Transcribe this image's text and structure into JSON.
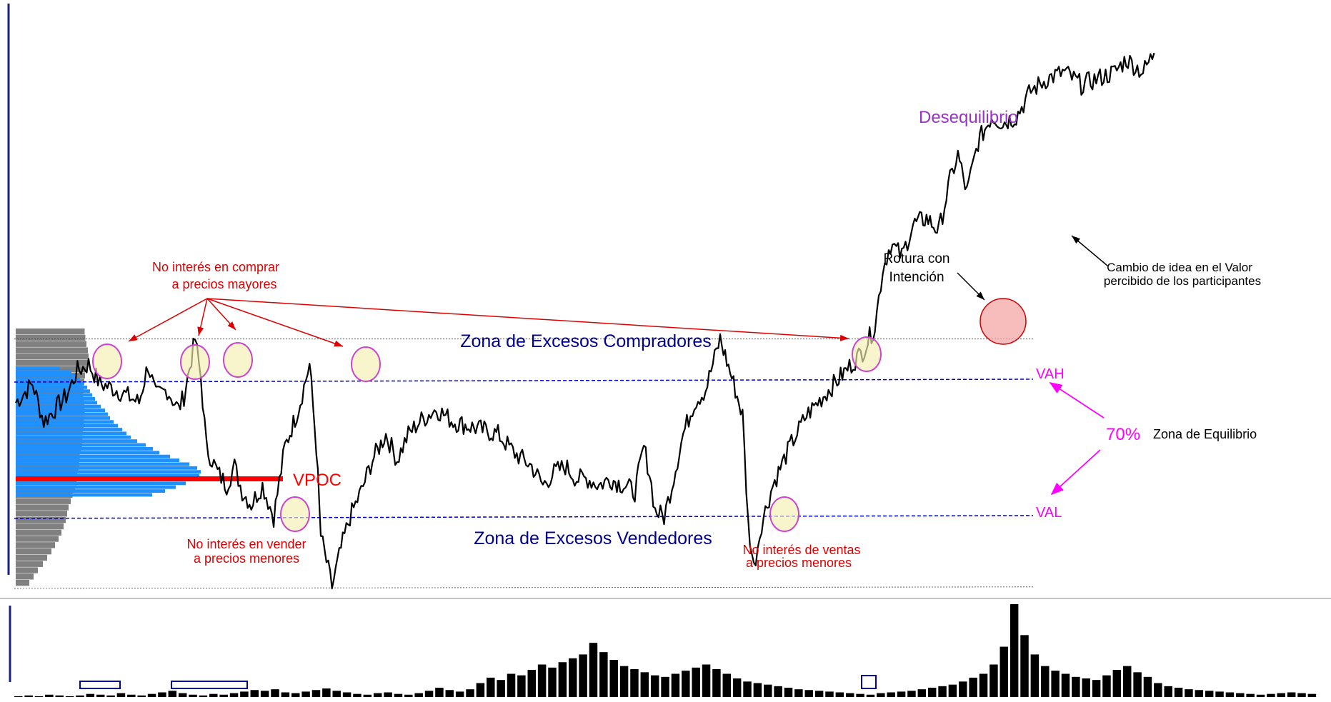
{
  "chart_data": {
    "type": "line",
    "title": "",
    "xlabel": "",
    "ylabel": "",
    "grid": false,
    "levels": {
      "excess_high": 98.5,
      "vah": 95,
      "vpoc": 87.5,
      "val": 84.5,
      "excess_low": 79
    },
    "level_labels": {
      "vah": "VAH",
      "val": "VAL",
      "vpoc": "VPOC"
    },
    "zones": {
      "buyers_excess": "Zona de Excesos Compradores",
      "sellers_excess": "Zona de Excesos Vendedores",
      "equilibrium_pct": "70%",
      "equilibrium": "Zona de Equilibrio",
      "imbalance": "Desequilibrio"
    },
    "annotations": {
      "no_buy_1": "No interés en comprar",
      "no_buy_2": "a precios mayores",
      "no_sell_1": "No interés en vender",
      "no_sell_2": "a precios menores",
      "no_sales_1": "No interés de ventas",
      "no_sales_2": "a precios menores",
      "breakout_1": "Rotura con",
      "breakout_2": "Intención",
      "value_change_1": "Cambio de idea en el Valor",
      "value_change_2": "percibido de los participantes"
    },
    "price_path": [
      [
        0,
        93.5
      ],
      [
        15,
        95
      ],
      [
        25,
        92
      ],
      [
        35,
        93
      ],
      [
        45,
        94
      ],
      [
        55,
        96
      ],
      [
        65,
        96.5
      ],
      [
        75,
        95
      ],
      [
        90,
        94.5
      ],
      [
        100,
        94
      ],
      [
        110,
        93.5
      ],
      [
        118,
        96.5
      ],
      [
        125,
        94
      ],
      [
        135,
        94.5
      ],
      [
        145,
        93
      ],
      [
        150,
        94
      ],
      [
        160,
        98.5
      ],
      [
        165,
        95.5
      ],
      [
        170,
        90
      ],
      [
        180,
        88
      ],
      [
        188,
        87
      ],
      [
        195,
        88.5
      ],
      [
        202,
        86.5
      ],
      [
        210,
        85.5
      ],
      [
        220,
        87
      ],
      [
        230,
        84.5
      ],
      [
        240,
        90
      ],
      [
        252,
        93
      ],
      [
        262,
        96.5
      ],
      [
        268,
        90
      ],
      [
        272,
        83
      ],
      [
        282,
        79
      ],
      [
        290,
        82
      ],
      [
        298,
        84.5
      ],
      [
        308,
        86.5
      ],
      [
        318,
        89
      ],
      [
        330,
        91
      ],
      [
        340,
        89
      ],
      [
        350,
        91
      ],
      [
        360,
        92
      ],
      [
        375,
        93
      ],
      [
        390,
        92
      ],
      [
        410,
        91.5
      ],
      [
        430,
        91
      ],
      [
        445,
        89.5
      ],
      [
        460,
        88.5
      ],
      [
        470,
        87
      ],
      [
        480,
        88
      ],
      [
        490,
        88.5
      ],
      [
        500,
        87.5
      ],
      [
        510,
        87.5
      ],
      [
        520,
        87
      ],
      [
        530,
        87.5
      ],
      [
        542,
        87
      ],
      [
        552,
        86.5
      ],
      [
        560,
        90
      ],
      [
        565,
        88
      ],
      [
        570,
        85
      ],
      [
        578,
        84.5
      ],
      [
        585,
        87
      ],
      [
        595,
        91
      ],
      [
        605,
        93.5
      ],
      [
        615,
        94.5
      ],
      [
        628,
        98.5
      ],
      [
        640,
        95
      ],
      [
        648,
        92.5
      ],
      [
        653,
        84
      ],
      [
        658,
        80.5
      ],
      [
        665,
        84
      ],
      [
        675,
        87
      ],
      [
        690,
        90
      ],
      [
        705,
        92.5
      ],
      [
        720,
        94
      ],
      [
        740,
        96
      ],
      [
        755,
        97.5
      ],
      [
        766,
        99.5
      ],
      [
        773,
        104
      ],
      [
        780,
        106
      ],
      [
        790,
        105
      ],
      [
        800,
        107.5
      ],
      [
        812,
        108
      ],
      [
        823,
        107
      ],
      [
        833,
        111
      ],
      [
        840,
        113
      ],
      [
        848,
        110
      ],
      [
        858,
        114
      ],
      [
        870,
        116
      ],
      [
        880,
        115.5
      ],
      [
        892,
        116
      ],
      [
        905,
        118
      ],
      [
        920,
        119
      ],
      [
        935,
        119.5
      ],
      [
        950,
        118.5
      ],
      [
        965,
        119
      ],
      [
        980,
        119.5
      ],
      [
        990,
        120.5
      ],
      [
        1005,
        119.5
      ],
      [
        1015,
        121
      ]
    ],
    "profile_grey": [
      96.5,
      97.5,
      99,
      101,
      102,
      101,
      99.5,
      97,
      96,
      95,
      94.5,
      95.5,
      96,
      96.5,
      95.5,
      95,
      94,
      93.5,
      92.5,
      91,
      89.5,
      88.5,
      87.5,
      86,
      85,
      83,
      79.5,
      77,
      74,
      72,
      70,
      67,
      64,
      60,
      55,
      50,
      44,
      38,
      31,
      25,
      19
    ],
    "profile_blue": [
      62,
      78,
      86,
      90,
      95,
      100,
      104,
      107,
      111,
      114,
      119,
      125,
      129,
      132,
      137,
      143,
      149,
      155,
      161,
      170,
      182,
      192,
      201,
      216,
      229,
      243,
      254,
      259,
      257,
      250,
      238,
      224,
      209,
      191
    ],
    "volume": [
      1,
      2,
      1,
      3,
      2,
      1,
      2,
      4,
      3,
      2,
      5,
      3,
      2,
      4,
      6,
      8,
      5,
      3,
      2,
      4,
      3,
      5,
      7,
      9,
      8,
      10,
      6,
      5,
      7,
      9,
      11,
      8,
      6,
      4,
      3,
      5,
      6,
      4,
      3,
      5,
      8,
      12,
      9,
      7,
      10,
      18,
      25,
      22,
      30,
      28,
      35,
      42,
      38,
      45,
      50,
      55,
      70,
      58,
      48,
      40,
      36,
      32,
      28,
      26,
      30,
      34,
      38,
      42,
      36,
      30,
      24,
      20,
      18,
      16,
      14,
      12,
      10,
      9,
      8,
      7,
      6,
      5,
      4,
      3,
      5,
      6,
      7,
      8,
      10,
      12,
      14,
      16,
      20,
      25,
      30,
      42,
      65,
      120,
      80,
      55,
      40,
      34,
      30,
      26,
      24,
      22,
      28,
      35,
      40,
      32,
      26,
      18,
      14,
      12,
      10,
      9,
      8,
      7,
      6,
      5,
      4,
      3,
      4,
      5,
      6,
      5,
      4
    ]
  },
  "colors": {
    "price_line": "#000000",
    "profile_grey": "#808080",
    "profile_blue": "#1e90ff",
    "vpoc": "#ff0000",
    "value_lines": "#0000cc",
    "zone_text": "#00008b",
    "value_labels": "#ff00ff",
    "annotation_red": "#dd0000",
    "imbalance": "#9932cc",
    "highlight_fill": "#f5f0b0",
    "highlight_stroke": "#cc44cc",
    "breakout_fill": "#f4a6a6",
    "breakout_stroke": "#cc0000",
    "volume_box": "#0000aa"
  }
}
